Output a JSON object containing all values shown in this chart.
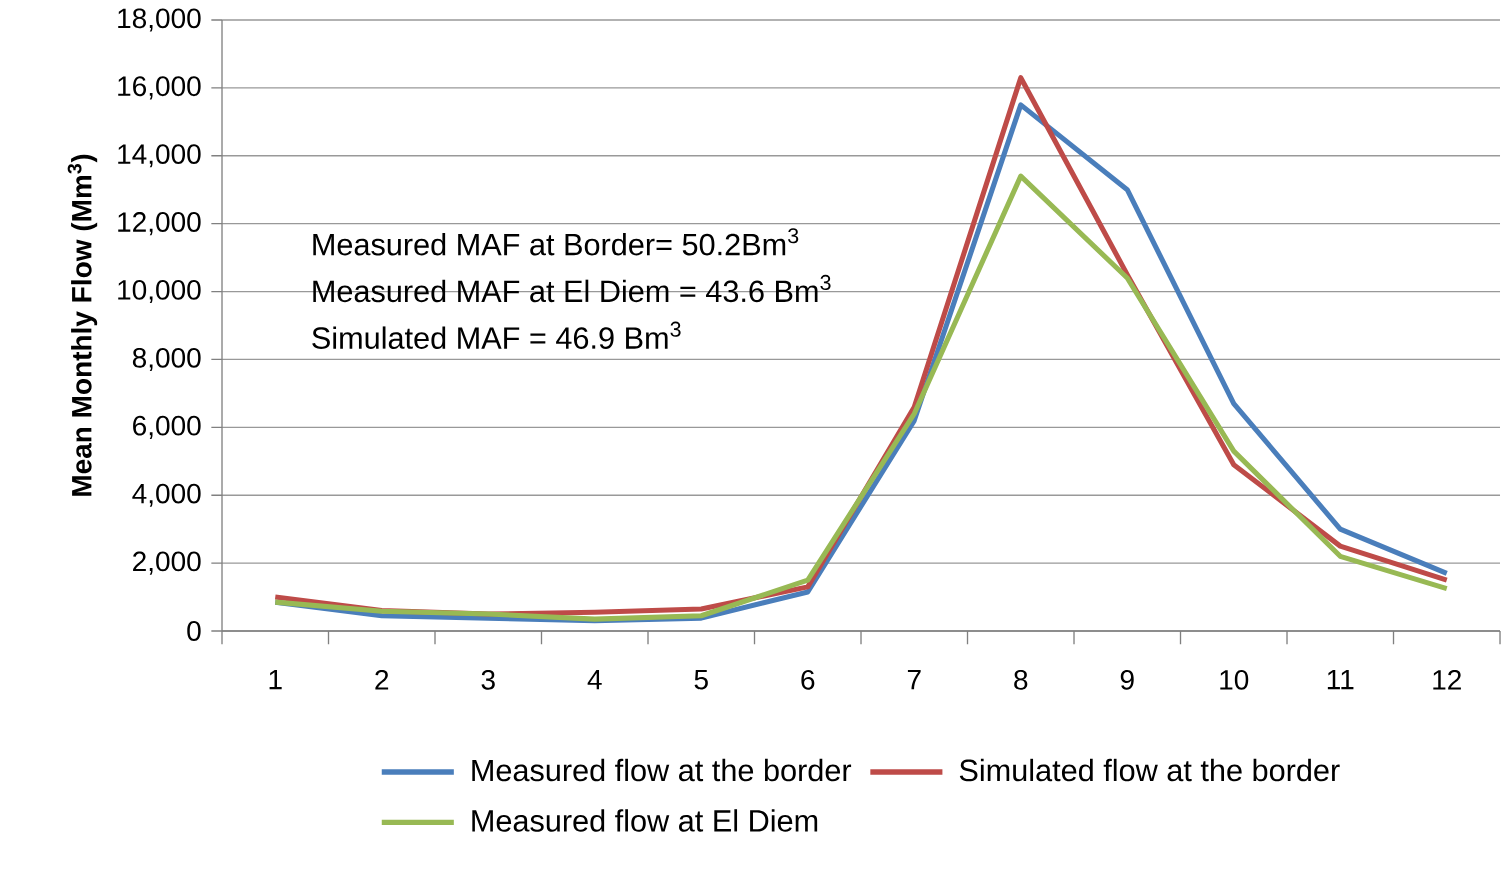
{
  "chart_data": {
    "type": "line",
    "ylabel": "Mean Monthly Flow (Mm$^{3}$)",
    "categories": [
      "1",
      "2",
      "3",
      "4",
      "5",
      "6",
      "7",
      "8",
      "9",
      "10",
      "11",
      "12"
    ],
    "series": [
      {
        "name": "Measured flow at the border",
        "color": "#4a7ebb",
        "values": [
          850,
          450,
          380,
          300,
          380,
          1150,
          6200,
          15500,
          13000,
          6700,
          3000,
          1700
        ]
      },
      {
        "name": "Simulated flow at the border",
        "color": "#be4b48",
        "values": [
          1000,
          600,
          500,
          550,
          650,
          1300,
          6600,
          16300,
          10500,
          4900,
          2500,
          1500
        ]
      },
      {
        "name": "Measured flow at El Diem",
        "color": "#98b954",
        "values": [
          850,
          580,
          500,
          350,
          450,
          1500,
          6400,
          13400,
          10400,
          5300,
          2200,
          1250
        ]
      }
    ],
    "ylim": [
      0,
      18000
    ],
    "yticks": [
      0,
      {
        "value": 2000,
        "label": "2,000"
      },
      {
        "value": 4000,
        "label": "4,000"
      },
      {
        "value": 6000,
        "label": "6,000"
      },
      {
        "value": 8000,
        "label": "8,000"
      },
      {
        "value": 10000,
        "label": "10,000"
      },
      {
        "value": 12000,
        "label": "12,000"
      },
      {
        "value": 14000,
        "label": "14,000"
      },
      {
        "value": 16000,
        "label": "16,000"
      },
      {
        "value": 18000,
        "label": "18,000"
      }
    ],
    "grid": "y",
    "legend": "bottom",
    "marker": "none",
    "line_style": "solid",
    "annotations": [
      "Measured MAF at Border= 50.2Bm$^{3}$",
      "Measured MAF at El Diem = 43.6 Bm$^{3}$",
      "Simulated MAF = 46.9 Bm$^{3}$"
    ]
  }
}
